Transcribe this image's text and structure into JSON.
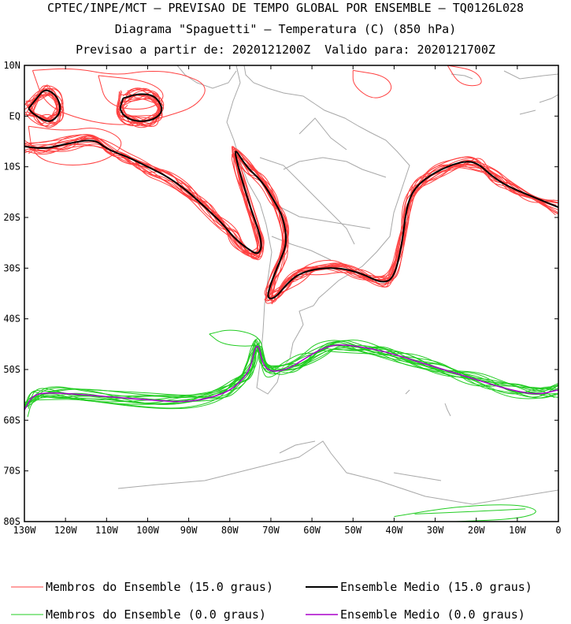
{
  "header": {
    "line1": "CPTEC/INPE/MCT – PREVISAO DE TEMPO GLOBAL POR ENSEMBLE – TQ0126L028",
    "line2": "Diagrama \"Spaguetti\" – Temperatura (C) (850 hPa)",
    "line3": "Previsao a partir de: 2020121200Z  Valido para: 2020121700Z"
  },
  "axes": {
    "lat_ticks": [
      "10N",
      "EQ",
      "10S",
      "20S",
      "30S",
      "40S",
      "50S",
      "60S",
      "70S",
      "80S"
    ],
    "lon_ticks": [
      "130W",
      "120W",
      "110W",
      "100W",
      "90W",
      "80W",
      "70W",
      "60W",
      "50W",
      "40W",
      "30W",
      "20W",
      "10W",
      "0"
    ],
    "lon_range": [
      -130,
      0
    ],
    "lat_range": [
      -80,
      10
    ]
  },
  "colors": {
    "member_15": "#ff4040",
    "mean_15": "#000000",
    "member_0": "#22cc22",
    "mean_0": "#aa00cc",
    "coast": "#a8a8a8"
  },
  "legend": {
    "item1": "Membros do Ensemble (15.0 graus)",
    "item2": "Ensemble Medio (15.0 graus)",
    "item3": "Membros do Ensemble (0.0 graus)",
    "item4": "Ensemble Medio (0.0 graus)"
  },
  "chart_data": {
    "type": "map",
    "contour_levels_c": [
      15.0,
      0.0
    ],
    "mean_15_main": [
      [
        -130,
        -6
      ],
      [
        -125,
        -6.5
      ],
      [
        -120,
        -5.5
      ],
      [
        -113,
        -4.5
      ],
      [
        -110,
        -6.5
      ],
      [
        -105,
        -8
      ],
      [
        -100,
        -10
      ],
      [
        -95,
        -12
      ],
      [
        -90,
        -15
      ],
      [
        -86,
        -18
      ],
      [
        -82,
        -21
      ],
      [
        -79,
        -24
      ],
      [
        -76,
        -26
      ],
      [
        -73,
        -27.5
      ],
      [
        -72,
        -25
      ],
      [
        -75,
        -18
      ],
      [
        -78,
        -10
      ],
      [
        -79,
        -6
      ],
      [
        -76,
        -10
      ],
      [
        -72,
        -13
      ],
      [
        -69,
        -17
      ],
      [
        -67,
        -20
      ],
      [
        -66,
        -25
      ],
      [
        -68,
        -29
      ],
      [
        -70,
        -33
      ],
      [
        -71,
        -36
      ],
      [
        -69,
        -36
      ],
      [
        -66,
        -33
      ],
      [
        -63,
        -31
      ],
      [
        -58,
        -30
      ],
      [
        -53,
        -30
      ],
      [
        -48,
        -31
      ],
      [
        -43,
        -33
      ],
      [
        -40,
        -32
      ],
      [
        -38,
        -25
      ],
      [
        -37,
        -18
      ],
      [
        -35,
        -14
      ],
      [
        -30,
        -11
      ],
      [
        -24,
        -9
      ],
      [
        -20,
        -9
      ],
      [
        -16,
        -12
      ],
      [
        -12,
        -14
      ],
      [
        -6,
        -16
      ],
      [
        0,
        -18
      ]
    ],
    "mean_15_loop_a": [
      [
        -129,
        1.5
      ],
      [
        -127,
        3.5
      ],
      [
        -125,
        5.5
      ],
      [
        -122,
        4
      ],
      [
        -121,
        1
      ],
      [
        -123,
        -1
      ],
      [
        -125,
        -1
      ],
      [
        -128,
        0.5
      ],
      [
        -129,
        1.5
      ]
    ],
    "mean_15_loop_b": [
      [
        -106,
        3.5
      ],
      [
        -102,
        4.5
      ],
      [
        -98,
        4
      ],
      [
        -96,
        1
      ],
      [
        -99,
        -1
      ],
      [
        -104,
        -1
      ],
      [
        -107,
        1
      ],
      [
        -106,
        3.5
      ]
    ],
    "mean_0": [
      [
        -130,
        -58
      ],
      [
        -128,
        -55
      ],
      [
        -124,
        -54.5
      ],
      [
        -115,
        -55
      ],
      [
        -100,
        -56
      ],
      [
        -90,
        -56.5
      ],
      [
        -82,
        -55
      ],
      [
        -78,
        -53
      ],
      [
        -75,
        -50
      ],
      [
        -74,
        -46
      ],
      [
        -73,
        -45
      ],
      [
        -72,
        -49
      ],
      [
        -70,
        -50.5
      ],
      [
        -66,
        -50
      ],
      [
        -62,
        -48
      ],
      [
        -58,
        -46
      ],
      [
        -54,
        -45
      ],
      [
        -48,
        -45.5
      ],
      [
        -42,
        -46.5
      ],
      [
        -36,
        -48
      ],
      [
        -28,
        -50
      ],
      [
        -20,
        -52
      ],
      [
        -12,
        -54
      ],
      [
        -5,
        -55
      ],
      [
        0,
        -54
      ]
    ],
    "mean_15_desc": "Ensemble mean 15C isotherm: crosses Pacific near 5-10S, dips along Andes to 36S, crosses Atlantic near 30-33S, rises to 9S at 25W",
    "mean_0_desc": "Ensemble mean 0C isotherm: near 55S across Pacific, rises to 45S at 73W, across Atlantic near 45-55S"
  }
}
